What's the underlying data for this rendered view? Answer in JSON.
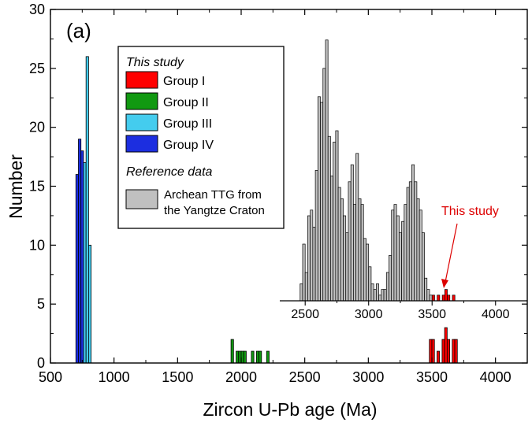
{
  "chart_data": [
    {
      "type": "bar",
      "panel_label": "(a)",
      "xlabel": "Zircon U-Pb age (Ma)",
      "ylabel": "Number",
      "xlim": [
        500,
        4250
      ],
      "ylim": [
        0,
        30
      ],
      "xticks": [
        500,
        1000,
        1500,
        2000,
        2500,
        3000,
        3500,
        4000
      ],
      "yticks": [
        0,
        5,
        10,
        15,
        20,
        25,
        30
      ],
      "bin_width": 20,
      "grid": false,
      "legend": {
        "placement": "top-center",
        "heading_study": "This study",
        "heading_reference": "Reference data",
        "entries": [
          {
            "label": "Group I",
            "color": "#ff0000"
          },
          {
            "label": "Group II",
            "color": "#119911"
          },
          {
            "label": "Group III",
            "color": "#44ccee"
          },
          {
            "label": "Group IV",
            "color": "#1c2ee0"
          }
        ],
        "reference_entry": {
          "line1": "Archean TTG from",
          "line2": "the Yangtze Craton",
          "color": "#c0c0c0"
        }
      },
      "series": [
        {
          "name": "Group IV",
          "color": "#1c2ee0",
          "bins": [
            [
              700,
              16
            ],
            [
              720,
              19
            ],
            [
              740,
              18
            ]
          ]
        },
        {
          "name": "Group III",
          "color": "#44ccee",
          "bins": [
            [
              760,
              17
            ],
            [
              780,
              26
            ],
            [
              800,
              10
            ]
          ]
        },
        {
          "name": "Group II",
          "color": "#119911",
          "bins": [
            [
              1920,
              2
            ],
            [
              1960,
              1
            ],
            [
              1980,
              1
            ],
            [
              2000,
              1
            ],
            [
              2020,
              1
            ],
            [
              2080,
              1
            ],
            [
              2120,
              1
            ],
            [
              2140,
              1
            ],
            [
              2200,
              1
            ]
          ]
        },
        {
          "name": "Group I",
          "color": "#ff0000",
          "bins": [
            [
              3480,
              2
            ],
            [
              3500,
              2
            ],
            [
              3540,
              1
            ],
            [
              3580,
              2
            ],
            [
              3600,
              3
            ],
            [
              3620,
              2
            ],
            [
              3660,
              2
            ],
            [
              3680,
              2
            ]
          ]
        }
      ]
    },
    {
      "type": "bar",
      "inset": true,
      "xlim": [
        2300,
        4250
      ],
      "xticks": [
        2500,
        3000,
        3500,
        4000
      ],
      "bin_width": 20,
      "annotation": {
        "text": "This study",
        "color": "#dd0000"
      },
      "series": [
        {
          "name": "Archean TTG from the Yangtze Craton",
          "color": "#c0c0c0",
          "bins": [
            [
              2460,
              3
            ],
            [
              2480,
              10
            ],
            [
              2500,
              5
            ],
            [
              2520,
              15
            ],
            [
              2540,
              16
            ],
            [
              2560,
              13
            ],
            [
              2580,
              23
            ],
            [
              2600,
              36
            ],
            [
              2620,
              35
            ],
            [
              2640,
              41
            ],
            [
              2660,
              46
            ],
            [
              2680,
              29
            ],
            [
              2700,
              22
            ],
            [
              2720,
              28
            ],
            [
              2740,
              30
            ],
            [
              2760,
              20
            ],
            [
              2780,
              18
            ],
            [
              2800,
              15
            ],
            [
              2820,
              12
            ],
            [
              2840,
              21
            ],
            [
              2860,
              24
            ],
            [
              2880,
              17
            ],
            [
              2900,
              26
            ],
            [
              2920,
              18
            ],
            [
              2940,
              17
            ],
            [
              2960,
              11
            ],
            [
              2980,
              10
            ],
            [
              3000,
              6
            ],
            [
              3020,
              3
            ],
            [
              3040,
              2
            ],
            [
              3060,
              3
            ],
            [
              3080,
              1
            ],
            [
              3100,
              2
            ],
            [
              3120,
              2
            ],
            [
              3140,
              5
            ],
            [
              3160,
              8
            ],
            [
              3180,
              16
            ],
            [
              3200,
              17
            ],
            [
              3220,
              15
            ],
            [
              3240,
              12
            ],
            [
              3260,
              14
            ],
            [
              3280,
              17
            ],
            [
              3300,
              20
            ],
            [
              3320,
              21
            ],
            [
              3340,
              24
            ],
            [
              3360,
              21
            ],
            [
              3380,
              18
            ],
            [
              3400,
              16
            ],
            [
              3420,
              12
            ],
            [
              3440,
              4
            ],
            [
              3460,
              2
            ],
            [
              3480,
              1
            ]
          ]
        },
        {
          "name": "This study",
          "color": "#ff0000",
          "bins": [
            [
              3500,
              1
            ],
            [
              3540,
              1
            ],
            [
              3580,
              1
            ],
            [
              3600,
              2
            ],
            [
              3620,
              1
            ],
            [
              3660,
              1
            ]
          ]
        }
      ]
    }
  ]
}
